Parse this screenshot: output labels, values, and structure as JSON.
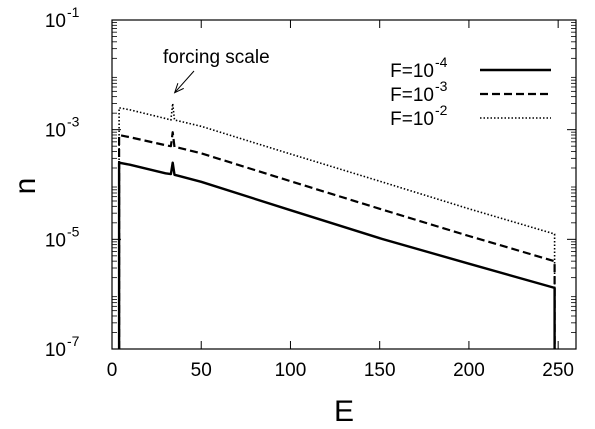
{
  "chart_data": {
    "type": "line",
    "title": "",
    "xlabel": "E",
    "ylabel": "n",
    "xlim": [
      0,
      260
    ],
    "ylim": [
      1e-07,
      0.1
    ],
    "yscale": "log",
    "grid": false,
    "legend_position": "top-right",
    "x_ticks": [
      {
        "value": 0,
        "label": "0"
      },
      {
        "value": 50,
        "label": "50"
      },
      {
        "value": 100,
        "label": "100"
      },
      {
        "value": 150,
        "label": "150"
      },
      {
        "value": 200,
        "label": "200"
      },
      {
        "value": 250,
        "label": "250"
      }
    ],
    "y_ticks": [
      {
        "value": 1e-07,
        "base": "10",
        "exp": "-7"
      },
      {
        "value": 1e-05,
        "base": "10",
        "exp": "-5"
      },
      {
        "value": 0.001,
        "base": "10",
        "exp": "-3"
      },
      {
        "value": 0.1,
        "base": "10",
        "exp": "-1"
      }
    ],
    "series": [
      {
        "legend_base": "F=10",
        "legend_exp": "-4",
        "dash": "solid",
        "x": [
          4,
          4,
          10,
          30,
          33,
          34,
          35,
          37,
          50,
          100,
          150,
          200,
          248,
          248
        ],
        "y": [
          1e-07,
          0.00025,
          0.00023,
          0.00016,
          0.000155,
          0.00025,
          0.00015,
          0.000145,
          0.000112,
          3.4e-05,
          1.05e-05,
          3.6e-06,
          1.3e-06,
          1e-07
        ]
      },
      {
        "legend_base": "F=10",
        "legend_exp": "-3",
        "dash": "dashed",
        "x": [
          4,
          4,
          10,
          30,
          33,
          34,
          35,
          37,
          50,
          100,
          150,
          200,
          248,
          248
        ],
        "y": [
          1e-07,
          0.0008,
          0.00073,
          0.00052,
          0.0005,
          0.0009,
          0.00048,
          0.00047,
          0.00037,
          0.000115,
          3.6e-05,
          1.15e-05,
          4e-06,
          1e-07
        ]
      },
      {
        "legend_base": "F=10",
        "legend_exp": "-2",
        "dash": "dotted",
        "x": [
          4,
          4,
          10,
          30,
          33,
          34,
          35,
          37,
          50,
          100,
          150,
          200,
          248,
          248
        ],
        "y": [
          1e-07,
          0.0025,
          0.0023,
          0.0016,
          0.0015,
          0.003,
          0.0015,
          0.00145,
          0.00115,
          0.00036,
          0.000115,
          3.6e-05,
          1.25e-05,
          1e-07
        ]
      }
    ],
    "annotation": {
      "text": "forcing scale",
      "x": 34,
      "y": 0.004
    }
  }
}
